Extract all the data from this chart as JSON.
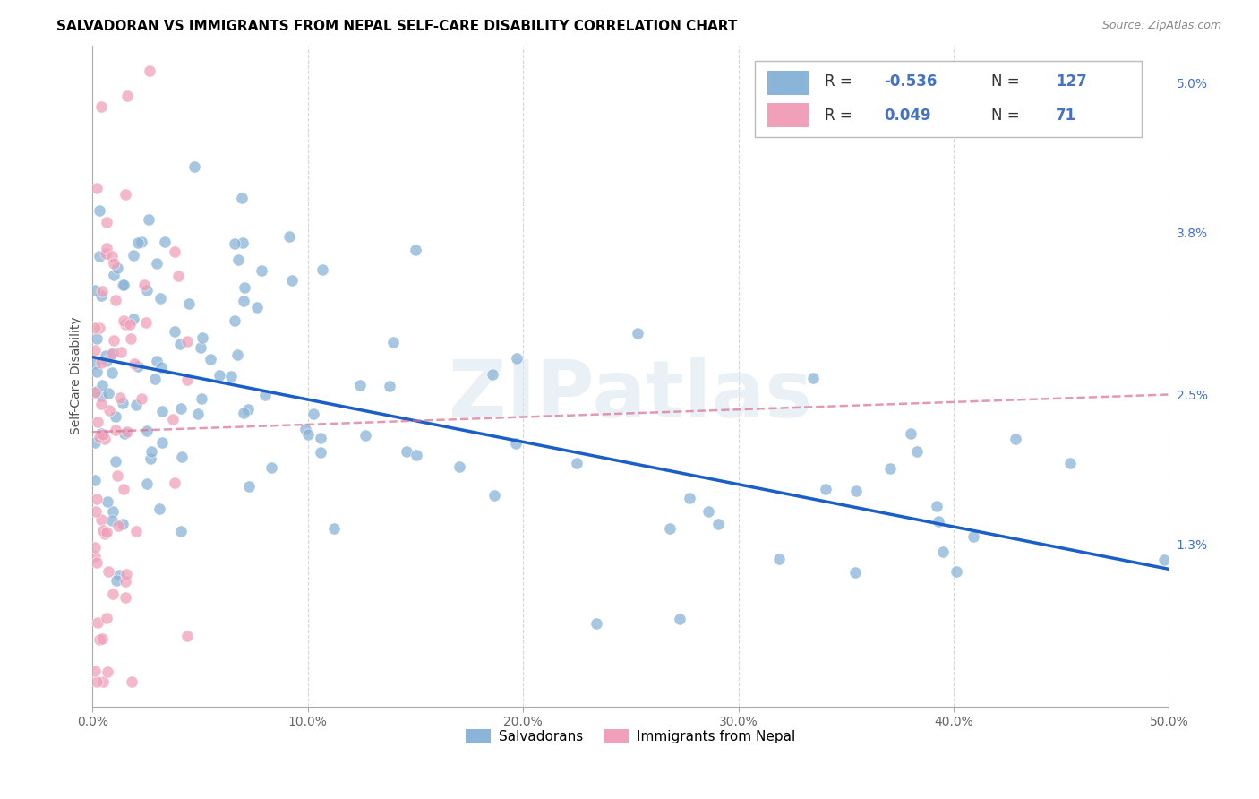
{
  "title": "SALVADORAN VS IMMIGRANTS FROM NEPAL SELF-CARE DISABILITY CORRELATION CHART",
  "source": "Source: ZipAtlas.com",
  "xlabel_ticks": [
    "0.0%",
    "10.0%",
    "20.0%",
    "30.0%",
    "40.0%",
    "50.0%"
  ],
  "xlabel_vals": [
    0.0,
    0.1,
    0.2,
    0.3,
    0.4,
    0.5
  ],
  "ylabel_ticks": [
    "5.0%",
    "3.8%",
    "2.5%",
    "1.3%"
  ],
  "ylabel_vals": [
    0.05,
    0.038,
    0.025,
    0.013
  ],
  "ylabel_label": "Self-Care Disability",
  "legend_labels": [
    "Salvadorans",
    "Immigrants from Nepal"
  ],
  "R_salvadoran": -0.536,
  "N_salvadoran": 127,
  "R_nepal": 0.049,
  "N_nepal": 71,
  "blue_color": "#8ab4d8",
  "pink_color": "#f0a0b8",
  "line_blue": "#1a5fc8",
  "line_pink": "#d87090",
  "watermark_text": "ZIPatlas",
  "xlim": [
    0.0,
    0.5
  ],
  "ylim": [
    0.0,
    0.053
  ],
  "blue_line_x0": 0.0,
  "blue_line_y0": 0.028,
  "blue_line_x1": 0.5,
  "blue_line_y1": 0.011,
  "pink_line_x0": 0.0,
  "pink_line_y0": 0.022,
  "pink_line_x1": 0.5,
  "pink_line_y1": 0.025
}
